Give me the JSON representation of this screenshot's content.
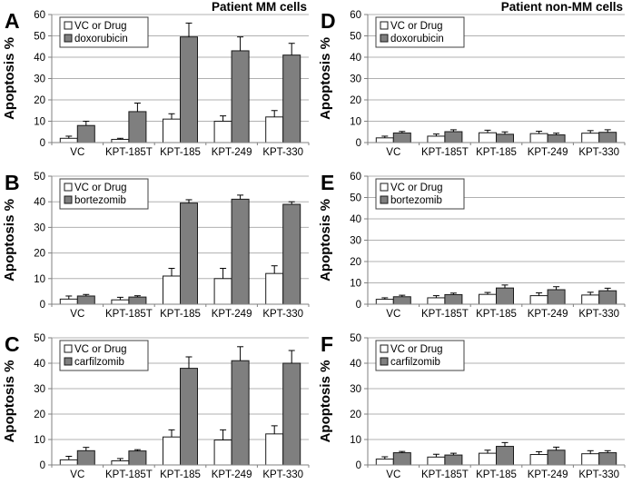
{
  "figure": {
    "column_headers": [
      "Patient MM cells",
      "Patient non-MM cells"
    ],
    "ylabel": "Apoptosis %"
  },
  "colors": {
    "background": "#ffffff",
    "bar_vc_fill": "#ffffff",
    "bar_drug_fill": "#7f7f7f",
    "bar_stroke": "#1a1a1a",
    "gridline": "#b0b0b0",
    "axis": "#808080",
    "text": "#000000",
    "error_bar": "#000000",
    "legend_border": "#404040"
  },
  "chart_data": [
    {
      "panel_label": "A",
      "header": "Patient MM cells",
      "type": "bar",
      "ylabel": "Apoptosis %",
      "ylim": [
        0,
        60
      ],
      "ytick_step": 10,
      "grid": true,
      "legend_position": "top-left-inside",
      "categories": [
        "VC",
        "KPT-185T",
        "KPT-185",
        "KPT-249",
        "KPT-330"
      ],
      "series": [
        {
          "name": "VC or Drug",
          "role": "vc",
          "values": [
            2,
            1.5,
            11,
            10,
            12
          ],
          "errors": [
            1,
            0.5,
            2.5,
            2.5,
            3
          ]
        },
        {
          "name": "doxorubicin",
          "role": "drug",
          "values": [
            8,
            14.5,
            49.5,
            43,
            41
          ],
          "errors": [
            2,
            4,
            6.5,
            6.5,
            5.5
          ]
        }
      ]
    },
    {
      "panel_label": "D",
      "header": "Patient non-MM cells",
      "type": "bar",
      "ylabel": "Apoptosis %",
      "ylim": [
        0,
        60
      ],
      "ytick_step": 10,
      "grid": true,
      "legend_position": "top-left-inside",
      "categories": [
        "VC",
        "KPT-185T",
        "KPT-185",
        "KPT-249",
        "KPT-330"
      ],
      "series": [
        {
          "name": "VC or Drug",
          "role": "vc",
          "values": [
            2.2,
            3,
            4.6,
            4.2,
            4.4
          ],
          "errors": [
            0.8,
            1,
            1.2,
            1.1,
            1.2
          ]
        },
        {
          "name": "doxorubicin",
          "role": "drug",
          "values": [
            4.5,
            5.1,
            3.9,
            3.6,
            4.8
          ],
          "errors": [
            0.7,
            0.9,
            1.1,
            0.8,
            1.2
          ]
        }
      ]
    },
    {
      "panel_label": "B",
      "header": "",
      "type": "bar",
      "ylabel": "Apoptosis %",
      "ylim": [
        0,
        50
      ],
      "ytick_step": 10,
      "grid": true,
      "legend_position": "top-left-inside",
      "categories": [
        "VC",
        "KPT-185T",
        "KPT-185",
        "KPT-249",
        "KPT-330"
      ],
      "series": [
        {
          "name": "VC or Drug",
          "role": "vc",
          "values": [
            2,
            1.7,
            11,
            10,
            12
          ],
          "errors": [
            1.2,
            1,
            3,
            4,
            3
          ]
        },
        {
          "name": "bortezomib",
          "role": "drug",
          "values": [
            3.2,
            2.8,
            39.5,
            41,
            39
          ],
          "errors": [
            0.6,
            0.5,
            1.3,
            1.6,
            1
          ]
        }
      ]
    },
    {
      "panel_label": "E",
      "header": "",
      "type": "bar",
      "ylabel": "Apoptosis %",
      "ylim": [
        0,
        60
      ],
      "ytick_step": 10,
      "grid": true,
      "legend_position": "top-left-inside",
      "categories": [
        "VC",
        "KPT-185T",
        "KPT-185",
        "KPT-249",
        "KPT-330"
      ],
      "series": [
        {
          "name": "VC or Drug",
          "role": "vc",
          "values": [
            2.3,
            3,
            4.6,
            4,
            4.3
          ],
          "errors": [
            0.7,
            1,
            0.9,
            1.3,
            1.3
          ]
        },
        {
          "name": "bortezomib",
          "role": "drug",
          "values": [
            3.5,
            4.5,
            7.6,
            6.8,
            6.3
          ],
          "errors": [
            0.7,
            0.7,
            1.4,
            1.4,
            1.2
          ]
        }
      ]
    },
    {
      "panel_label": "C",
      "header": "",
      "type": "bar",
      "ylabel": "Apoptosis %",
      "ylim": [
        0,
        50
      ],
      "ytick_step": 10,
      "grid": true,
      "legend_position": "top-left-inside",
      "categories": [
        "VC",
        "KPT-185T",
        "KPT-185",
        "KPT-249",
        "KPT-330"
      ],
      "series": [
        {
          "name": "VC or Drug",
          "role": "vc",
          "values": [
            2,
            1.6,
            11,
            9.8,
            12.2
          ],
          "errors": [
            1.4,
            0.9,
            2.8,
            4,
            3.2
          ]
        },
        {
          "name": "carfilzomib",
          "role": "drug",
          "values": [
            5.6,
            5.5,
            38,
            41,
            40
          ],
          "errors": [
            1.3,
            0.5,
            4.5,
            5.5,
            5
          ]
        }
      ]
    },
    {
      "panel_label": "F",
      "header": "",
      "type": "bar",
      "ylabel": "Apoptosis %",
      "ylim": [
        0,
        50
      ],
      "ytick_step": 10,
      "grid": true,
      "legend_position": "top-left-inside",
      "categories": [
        "VC",
        "KPT-185T",
        "KPT-185",
        "KPT-249",
        "KPT-330"
      ],
      "series": [
        {
          "name": "VC or Drug",
          "role": "vc",
          "values": [
            2.3,
            3.1,
            4.6,
            4.1,
            4.4
          ],
          "errors": [
            0.9,
            1.1,
            1.2,
            1.1,
            1.2
          ]
        },
        {
          "name": "carfilzomib",
          "role": "drug",
          "values": [
            4.8,
            3.9,
            7.3,
            5.8,
            4.8
          ],
          "errors": [
            0.5,
            0.7,
            1.5,
            1.2,
            0.8
          ]
        }
      ]
    }
  ]
}
